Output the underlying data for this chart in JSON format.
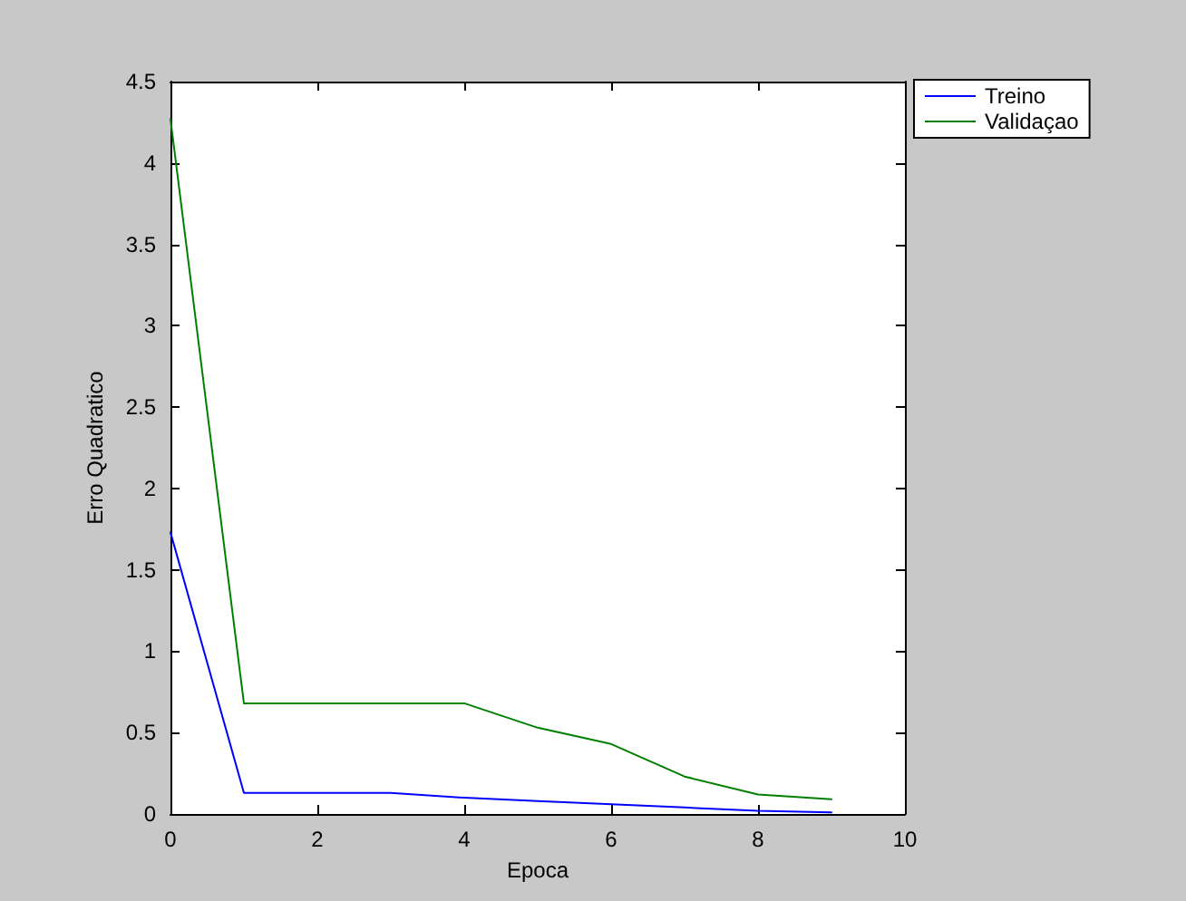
{
  "chart_data": {
    "type": "line",
    "xlabel": "Epoca",
    "ylabel": "Erro Quadratico",
    "x": [
      0,
      1,
      2,
      3,
      4,
      5,
      6,
      7,
      8,
      9
    ],
    "series": [
      {
        "name": "Treino",
        "color": "#0000ff",
        "values": [
          1.73,
          0.13,
          0.13,
          0.13,
          0.1,
          0.08,
          0.06,
          0.04,
          0.02,
          0.01
        ]
      },
      {
        "name": "Validaçao",
        "color": "#008000",
        "values": [
          4.27,
          0.68,
          0.68,
          0.68,
          0.68,
          0.53,
          0.43,
          0.23,
          0.12,
          0.09
        ]
      }
    ],
    "xlim": [
      0,
      10
    ],
    "xticks": [
      0,
      2,
      4,
      6,
      8,
      10
    ],
    "ylim": [
      0,
      4.5
    ],
    "yticks": [
      0,
      0.5,
      1,
      1.5,
      2,
      2.5,
      3,
      3.5,
      4,
      4.5
    ],
    "grid": false,
    "legend": "top right",
    "marker": "none",
    "line_style": "solid"
  }
}
